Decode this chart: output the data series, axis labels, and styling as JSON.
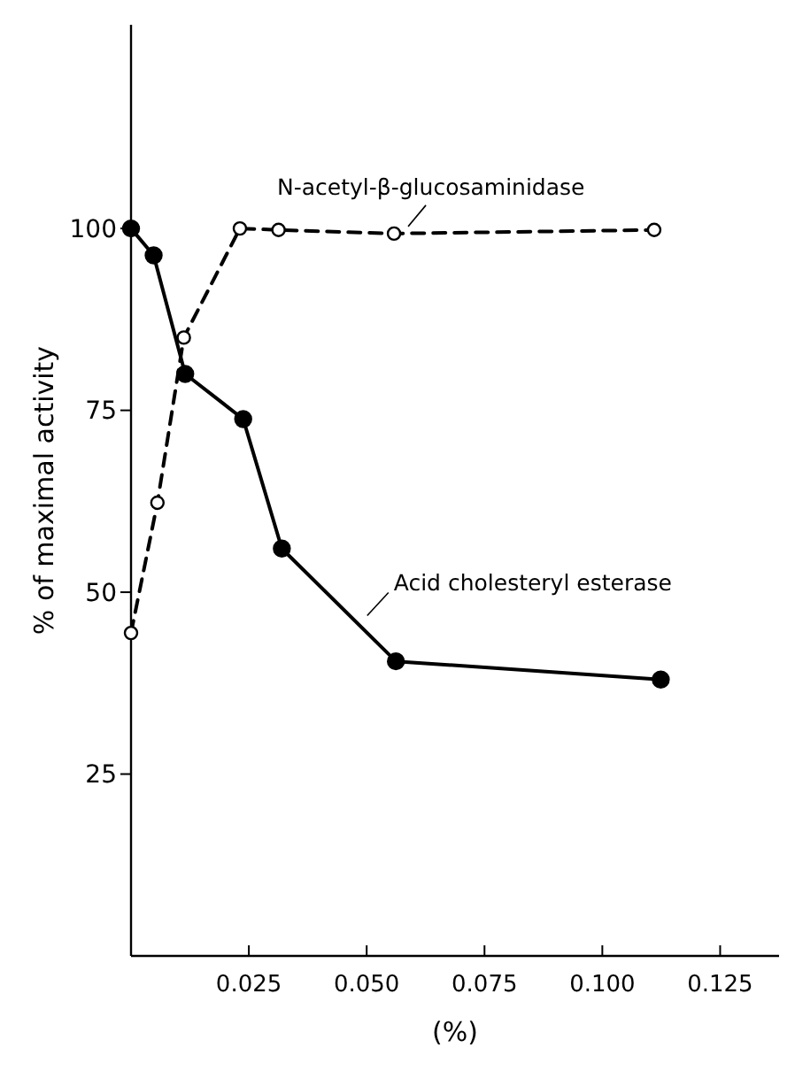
{
  "chart_data": {
    "type": "line",
    "xlabel": "(%)",
    "ylabel": "% of maximal activity",
    "xlim": [
      0,
      0.1375
    ],
    "xticks": [
      {
        "value": 0.025,
        "label": "0.025"
      },
      {
        "value": 0.05,
        "label": "0.050"
      },
      {
        "value": 0.075,
        "label": "0.075"
      },
      {
        "value": 0.1,
        "label": "0.100"
      },
      {
        "value": 0.125,
        "label": "0.125"
      }
    ],
    "ylim": [
      0,
      128
    ],
    "yticks": [
      25,
      50,
      75,
      100
    ],
    "grid": false,
    "marker": "circle",
    "series": [
      {
        "name": "N-acetyl-β-glucosaminidase",
        "color": "#000000",
        "line_style": "dashed",
        "x": [
          0,
          0.0056,
          0.0112,
          0.0231,
          0.0313,
          0.0558,
          0.111
        ],
        "values": [
          44.4,
          62.3,
          85,
          100,
          99.8,
          99.3,
          99.8
        ]
      },
      {
        "name": "Acid cholesteryl esterase",
        "color": "#000000",
        "line_style": "solid",
        "x": [
          0,
          0.0048,
          0.0115,
          0.0238,
          0.032,
          0.0562,
          0.1124
        ],
        "values": [
          100,
          96.3,
          80,
          73.8,
          56,
          40.5,
          38
        ]
      }
    ]
  }
}
